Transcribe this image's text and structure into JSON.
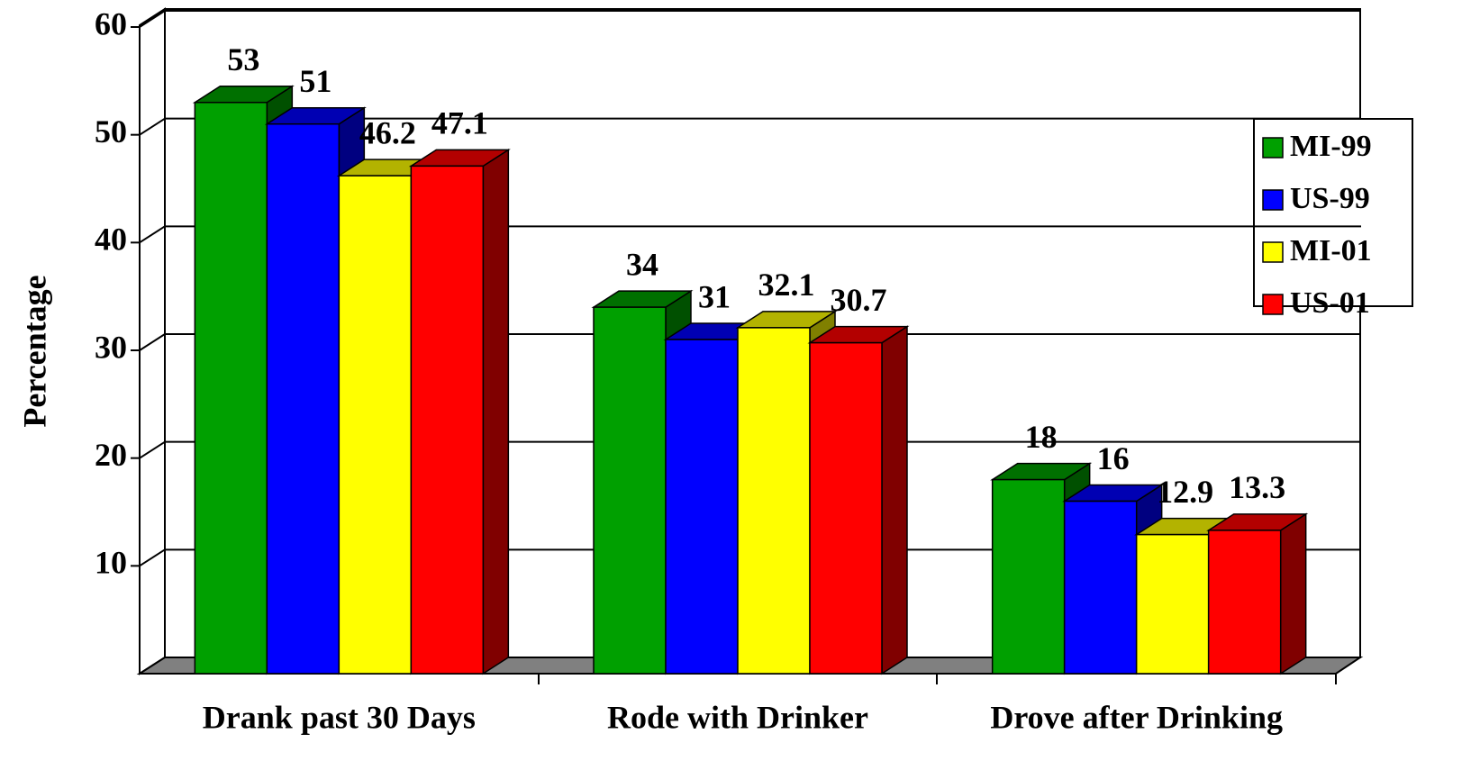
{
  "chart_data": {
    "type": "bar3d",
    "y_label": "Percentage",
    "categories": [
      "Drank past 30 Days",
      "Rode with Drinker",
      "Drove after Drinking"
    ],
    "series": [
      {
        "name": "MI-99",
        "color": "#00a000",
        "values": [
          53,
          34,
          18
        ]
      },
      {
        "name": "US-99",
        "color": "#0000ff",
        "values": [
          51,
          31,
          16
        ]
      },
      {
        "name": "MI-01",
        "color": "#ffff00",
        "values": [
          46.2,
          32.1,
          12.9
        ]
      },
      {
        "name": "US-01",
        "color": "#ff0000",
        "values": [
          47.1,
          30.7,
          13.3
        ]
      }
    ],
    "ylim": [
      0,
      60
    ],
    "yticks": [
      10,
      20,
      30,
      40,
      50,
      60
    ],
    "grid": true,
    "legend": "right"
  }
}
